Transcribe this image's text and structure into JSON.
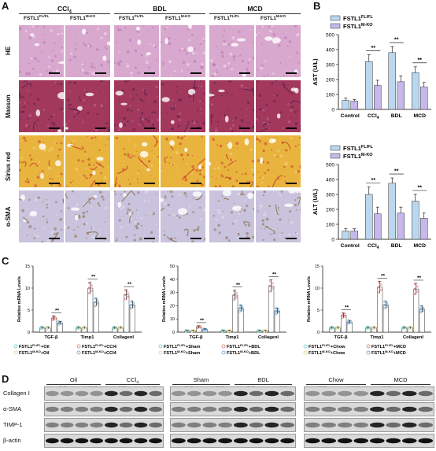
{
  "panels": {
    "A": "A",
    "B": "B",
    "C": "C",
    "D": "D"
  },
  "panelA": {
    "groups": [
      "CCl4",
      "BDL",
      "MCD"
    ],
    "genotypes": [
      "FSTL1FL/FL",
      "FSTL1M-KO"
    ],
    "stains": [
      "HE",
      "Masson",
      "Sirius red",
      "α-SMA"
    ],
    "colors": {
      "HE": "#d9a8cf",
      "Masson": "#a2395d",
      "Sirius red": "#e8b43e",
      "α-SMA": "#c9c3dd"
    }
  },
  "legend": {
    "fl": "FSTL1FL/FL",
    "ko": "FSTL1M-KO",
    "fl_color": "#b9d7ee",
    "ko_color": "#c6b8ea"
  },
  "chart_data": [
    {
      "type": "bar",
      "title": "",
      "ylabel": "AST (U/L)",
      "ylim": [
        0,
        500
      ],
      "yticks": [
        0,
        100,
        200,
        300,
        400,
        500
      ],
      "categories": [
        "Control",
        "CCl4",
        "BDL",
        "MCD"
      ],
      "series": [
        {
          "name": "FSTL1FL/FL",
          "values": [
            60,
            320,
            380,
            245
          ],
          "errors": [
            15,
            45,
            40,
            40
          ]
        },
        {
          "name": "FSTL1M-KO",
          "values": [
            55,
            160,
            185,
            150
          ],
          "errors": [
            12,
            35,
            40,
            30
          ]
        }
      ],
      "significance": [
        "",
        "**",
        "**",
        "**"
      ]
    },
    {
      "type": "bar",
      "title": "",
      "ylabel": "ALT (U/L)",
      "ylim": [
        0,
        500
      ],
      "yticks": [
        0,
        100,
        200,
        300,
        400,
        500
      ],
      "categories": [
        "Control",
        "CCl4",
        "BDL",
        "MCD"
      ],
      "series": [
        {
          "name": "FSTL1FL/FL",
          "values": [
            55,
            300,
            375,
            255
          ],
          "errors": [
            15,
            50,
            35,
            45
          ]
        },
        {
          "name": "FSTL1M-KO",
          "values": [
            55,
            170,
            175,
            140
          ],
          "errors": [
            15,
            45,
            40,
            35
          ]
        }
      ],
      "significance": [
        "",
        "**",
        "**",
        "**"
      ]
    },
    {
      "type": "bar",
      "ylabel": "Relative mRNA Levels",
      "ylim": [
        0,
        15
      ],
      "yticks": [
        0,
        5,
        10,
        15
      ],
      "categories": [
        "TGF-β",
        "Timp1",
        "CollagenI"
      ],
      "series": [
        {
          "name": "FSTL1FL/FL+Oil",
          "values": [
            1,
            1,
            1
          ]
        },
        {
          "name": "FSTL1M-KO+Oil",
          "values": [
            1,
            1,
            1
          ]
        },
        {
          "name": "FSTL1FL/FL+CCl4",
          "values": [
            3.2,
            10,
            8.5
          ]
        },
        {
          "name": "FSTL1M-KO+CCl4",
          "values": [
            2.1,
            6.8,
            6.2
          ]
        }
      ],
      "significance": [
        "**",
        "**",
        "**"
      ]
    },
    {
      "type": "bar",
      "ylabel": "Relative mRNA Levels",
      "ylim": [
        0,
        50
      ],
      "yticks": [
        0,
        10,
        20,
        30,
        40,
        50
      ],
      "categories": [
        "TGF-β",
        "Timp1",
        "CollagenI"
      ],
      "series": [
        {
          "name": "FSTL1FL/FL+Sham",
          "values": [
            1,
            1,
            1
          ]
        },
        {
          "name": "FSTL1M-KO+Sham",
          "values": [
            1,
            1,
            1
          ]
        },
        {
          "name": "FSTL1FL/FL+BDL",
          "values": [
            4,
            28,
            35
          ]
        },
        {
          "name": "FSTL1M-KO+BDL",
          "values": [
            2,
            18,
            16
          ]
        }
      ],
      "significance": [
        "**",
        "**",
        "**"
      ]
    },
    {
      "type": "bar",
      "ylabel": "Relative mRNA Levels",
      "ylim": [
        0,
        15
      ],
      "yticks": [
        0,
        5,
        10,
        15
      ],
      "categories": [
        "TGF-β",
        "Timp1",
        "CollagenI"
      ],
      "series": [
        {
          "name": "FSTL1FL/FL+Chow",
          "values": [
            1,
            1,
            1
          ]
        },
        {
          "name": "FSTL1M-KO+Chow",
          "values": [
            1,
            1,
            1
          ]
        },
        {
          "name": "FSTL1FL/FL+MCD",
          "values": [
            3.8,
            10.2,
            9.8
          ]
        },
        {
          "name": "FSTL1M-KO+MCD",
          "values": [
            2.3,
            6.2,
            5.2
          ]
        }
      ],
      "significance": [
        "**",
        "**",
        "**"
      ]
    }
  ],
  "panelC": {
    "legends": [
      [
        "FSTL1FL/FL+Oil",
        "FSTL1FL/FL+CCl4",
        "FSTL1M-KO+Oil",
        "FSTL1M-KO+CCl4"
      ],
      [
        "FSTL1FL/FL+Sham",
        "FSTL1FL/FL+BDL",
        "FSTL1M-KO+Sham",
        "FSTL1M-KO+BDL"
      ],
      [
        "FSTL1FL/FL+Chow",
        "FSTL1FL/FL+MCD",
        "FSTL1M-KO+Chow",
        "FSTL1M-KO+MCD"
      ]
    ],
    "colors": [
      "#8ed1c7",
      "#e8d9a4",
      "#e08a8a",
      "#7aaed6"
    ]
  },
  "panelD": {
    "groups": [
      [
        "Oil",
        "CCl4"
      ],
      [
        "Sham",
        "BDL"
      ],
      [
        "Chow",
        "MCD"
      ]
    ],
    "sub": [
      "FSTL1FL/FL",
      "FSTL1M-KO",
      "FSTL1FL/FL",
      "FSTL1M-KO"
    ],
    "rows": [
      "Collagen I",
      "α-SMA",
      "TIMP-1",
      "β-actin"
    ]
  }
}
